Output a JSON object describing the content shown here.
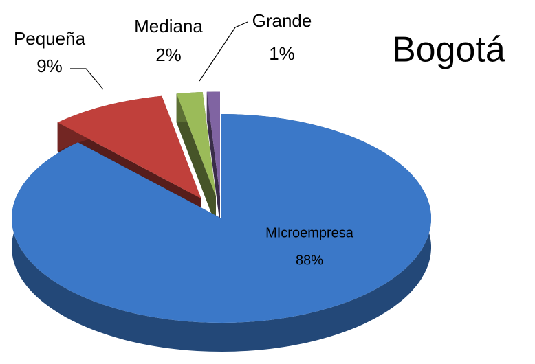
{
  "chart_data": {
    "type": "pie3d",
    "title": "Bogotá",
    "categories": [
      "MIcroempresa",
      "Pequeña",
      "Mediana",
      "Grande"
    ],
    "values": [
      88,
      9,
      2,
      1
    ],
    "value_labels": [
      "88%",
      "9%",
      "2%",
      "1%"
    ],
    "colors": [
      "#3b78c8",
      "#c0403b",
      "#9bbb59",
      "#8064a2"
    ]
  }
}
